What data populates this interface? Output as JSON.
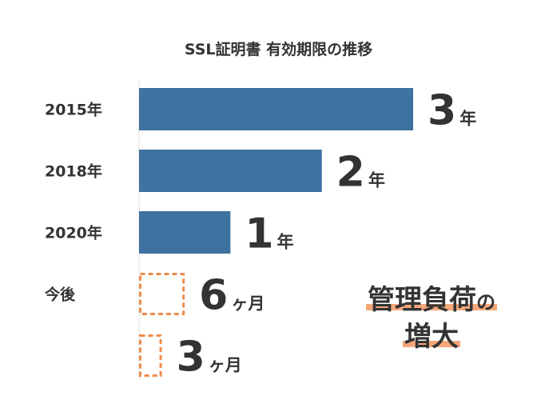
{
  "chart_data": {
    "type": "bar",
    "orientation": "horizontal",
    "title": "SSL証明書 有効期限の推移",
    "categories": [
      "2015年",
      "2018年",
      "2020年",
      "今後",
      ""
    ],
    "values_months": [
      36,
      24,
      12,
      6,
      3
    ],
    "value_labels": [
      {
        "num": "3",
        "unit": "年"
      },
      {
        "num": "2",
        "unit": "年"
      },
      {
        "num": "1",
        "unit": "年"
      },
      {
        "num": "6",
        "unit": "ヶ月"
      },
      {
        "num": "3",
        "unit": "ヶ月"
      }
    ],
    "bar_styles": [
      "solid",
      "solid",
      "solid",
      "dashed",
      "dashed"
    ],
    "colors": {
      "solid": "#3e72a0",
      "dashed": "#f08a4b",
      "text": "#333333"
    },
    "xlabel": "",
    "ylabel": "",
    "grid": false,
    "legend": "none"
  },
  "callout": {
    "line1": "管理負荷の",
    "line2": "増大",
    "highlight_color": "#f5a77a"
  }
}
